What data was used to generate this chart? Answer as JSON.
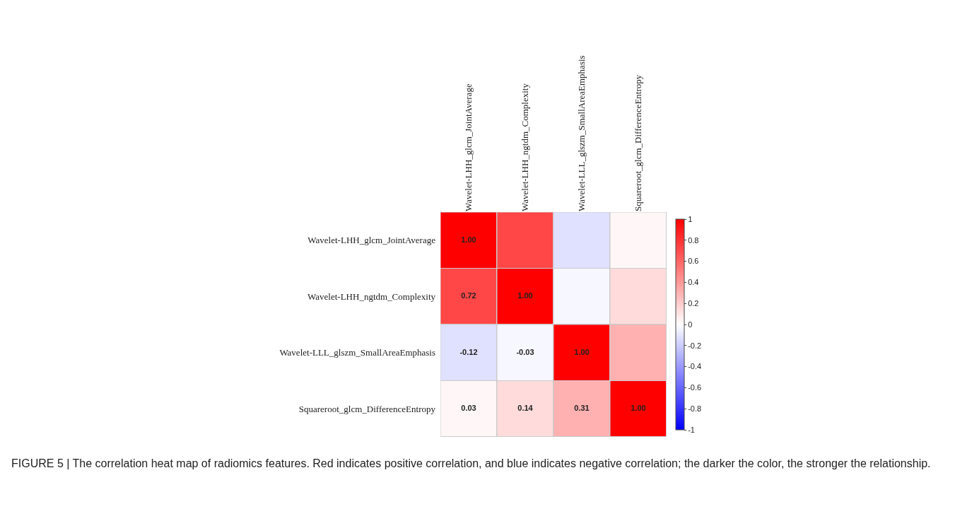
{
  "chart_data": {
    "type": "heatmap",
    "categories": [
      "Wavelet-LHH_glcm_JointAverage",
      "Wavelet-LHH_ngtdm_Complexity",
      "Wavelet-LLL_glszm_SmallAreaEmphasis",
      "Squareroot_glcm_DifferenceEntropy"
    ],
    "y_categories": [
      "Wavelet-LHH_glcm_JointAverage",
      "Wavelet-LHH_ngtdm_Complexity",
      "Wavelet-LLL_glszm_SmallAreaEmphasis",
      "Squareroot_glcm_DifferenceEntropy"
    ],
    "cells": [
      [
        1.0,
        0.72,
        -0.12,
        0.03
      ],
      [
        0.72,
        1.0,
        -0.03,
        0.14
      ],
      [
        -0.12,
        -0.03,
        1.0,
        0.31
      ],
      [
        0.03,
        0.14,
        0.31,
        1.0
      ]
    ],
    "cell_labels": [
      [
        "1.00",
        null,
        null,
        null
      ],
      [
        "0.72",
        "1.00",
        null,
        null
      ],
      [
        "-0.12",
        "-0.03",
        "1.00",
        null
      ],
      [
        "0.03",
        "0.14",
        "0.31",
        "1.00"
      ]
    ],
    "data_labels": true,
    "clim": [
      -1,
      1
    ],
    "cticks": [
      -1,
      -0.8,
      -0.6,
      -0.4,
      -0.2,
      0,
      0.2,
      0.4,
      0.6,
      0.8,
      1
    ],
    "grid": true,
    "annotations": [
      "FIGURE 5 | The correlation heat map of radiomics features. Red indicates positive correlation, and blue indicates negative correlation; the darker the color, the stronger the relationship."
    ]
  }
}
